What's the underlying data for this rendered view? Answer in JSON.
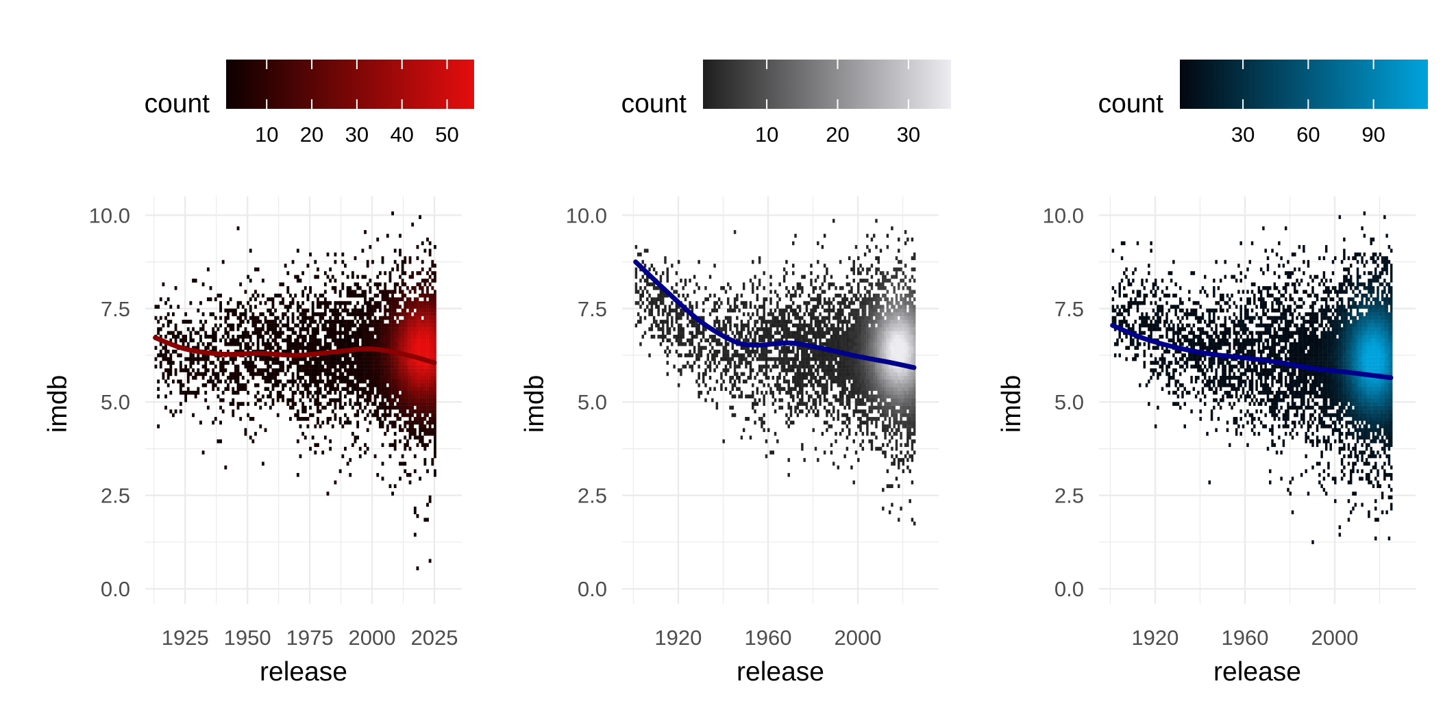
{
  "chart_data": [
    {
      "type": "heatmap",
      "subtype": "2d-bin-with-smooth",
      "xlabel": "release",
      "ylabel": "imdb",
      "x_ticks": [
        1925,
        1950,
        1975,
        2000,
        2025
      ],
      "y_ticks": [
        0.0,
        2.5,
        5.0,
        7.5,
        10.0
      ],
      "y_tick_labels": [
        "0.0",
        "2.5",
        "5.0",
        "7.5",
        "10.0"
      ],
      "xlim": [
        1909,
        2036
      ],
      "ylim": [
        -0.4,
        10.5
      ],
      "grid": true,
      "legend": {
        "title": "count",
        "position": "top",
        "ticks": [
          10,
          20,
          30,
          40,
          50
        ],
        "range": [
          1,
          56
        ],
        "low_color": "#0d0000",
        "high_color": "#e50d0d"
      },
      "smooth_color": "#8b0000",
      "smooth": {
        "x": [
          1913,
          1925,
          1940,
          1955,
          1970,
          1985,
          2000,
          2015,
          2025
        ],
        "y": [
          6.72,
          6.42,
          6.28,
          6.3,
          6.25,
          6.34,
          6.42,
          6.24,
          6.05
        ]
      },
      "density": {
        "x_start": 1913,
        "x_end": 2025,
        "center_x": 2020,
        "center_y": 6.5
      },
      "distribution": [
        [
          1915,
          6.3,
          0.7
        ],
        [
          1930,
          6.2,
          0.9
        ],
        [
          1950,
          6.3,
          1.0
        ],
        [
          1975,
          6.2,
          1.1
        ],
        [
          2000,
          6.2,
          1.2
        ],
        [
          2025,
          6.0,
          1.5
        ]
      ]
    },
    {
      "type": "heatmap",
      "subtype": "2d-bin-with-smooth",
      "xlabel": "release",
      "ylabel": "imdb",
      "x_ticks": [
        1920,
        1960,
        2000
      ],
      "y_ticks": [
        0.0,
        2.5,
        5.0,
        7.5,
        10.0
      ],
      "y_tick_labels": [
        "0.0",
        "2.5",
        "5.0",
        "7.5",
        "10.0"
      ],
      "xlim": [
        1895,
        2036
      ],
      "ylim": [
        -0.4,
        10.5
      ],
      "grid": true,
      "legend": {
        "title": "count",
        "position": "top",
        "ticks": [
          10,
          20,
          30
        ],
        "range": [
          1,
          36
        ],
        "low_color": "#1e1e1e",
        "high_color": "#ececf1"
      },
      "smooth_color": "#00008b",
      "smooth": {
        "x": [
          1901,
          1915,
          1930,
          1945,
          1955,
          1970,
          1985,
          2000,
          2015,
          2025
        ],
        "y": [
          8.75,
          7.95,
          7.15,
          6.62,
          6.52,
          6.58,
          6.42,
          6.22,
          6.05,
          5.92
        ]
      },
      "density": {
        "x_start": 1901,
        "x_end": 2025,
        "center_x": 2018,
        "center_y": 6.5
      },
      "distribution": [
        [
          1901,
          8.0,
          0.6
        ],
        [
          1930,
          6.5,
          0.8
        ],
        [
          1960,
          6.4,
          1.0
        ],
        [
          1990,
          6.3,
          1.1
        ],
        [
          2025,
          6.0,
          1.5
        ]
      ]
    },
    {
      "type": "heatmap",
      "subtype": "2d-bin-with-smooth",
      "xlabel": "release",
      "ylabel": "imdb",
      "x_ticks": [
        1920,
        1960,
        2000
      ],
      "y_ticks": [
        0.0,
        2.5,
        5.0,
        7.5,
        10.0
      ],
      "y_tick_labels": [
        "0.0",
        "2.5",
        "5.0",
        "7.5",
        "10.0"
      ],
      "xlim": [
        1895,
        2036
      ],
      "ylim": [
        -0.4,
        10.5
      ],
      "grid": true,
      "legend": {
        "title": "count",
        "position": "top",
        "ticks": [
          30,
          60,
          90
        ],
        "range": [
          1,
          115
        ],
        "low_color": "#03070f",
        "high_color": "#00a3dd"
      },
      "smooth_color": "#00008b",
      "smooth": {
        "x": [
          1901,
          1915,
          1930,
          1945,
          1960,
          1975,
          1990,
          2005,
          2025
        ],
        "y": [
          7.05,
          6.7,
          6.45,
          6.28,
          6.18,
          6.06,
          5.9,
          5.8,
          5.65
        ]
      },
      "density": {
        "x_start": 1901,
        "x_end": 2025,
        "center_x": 2017,
        "center_y": 6.2
      },
      "distribution": [
        [
          1901,
          7.5,
          0.6
        ],
        [
          1930,
          6.5,
          0.9
        ],
        [
          1960,
          6.2,
          1.1
        ],
        [
          1990,
          6.0,
          1.3
        ],
        [
          2025,
          5.8,
          1.7
        ]
      ]
    }
  ]
}
